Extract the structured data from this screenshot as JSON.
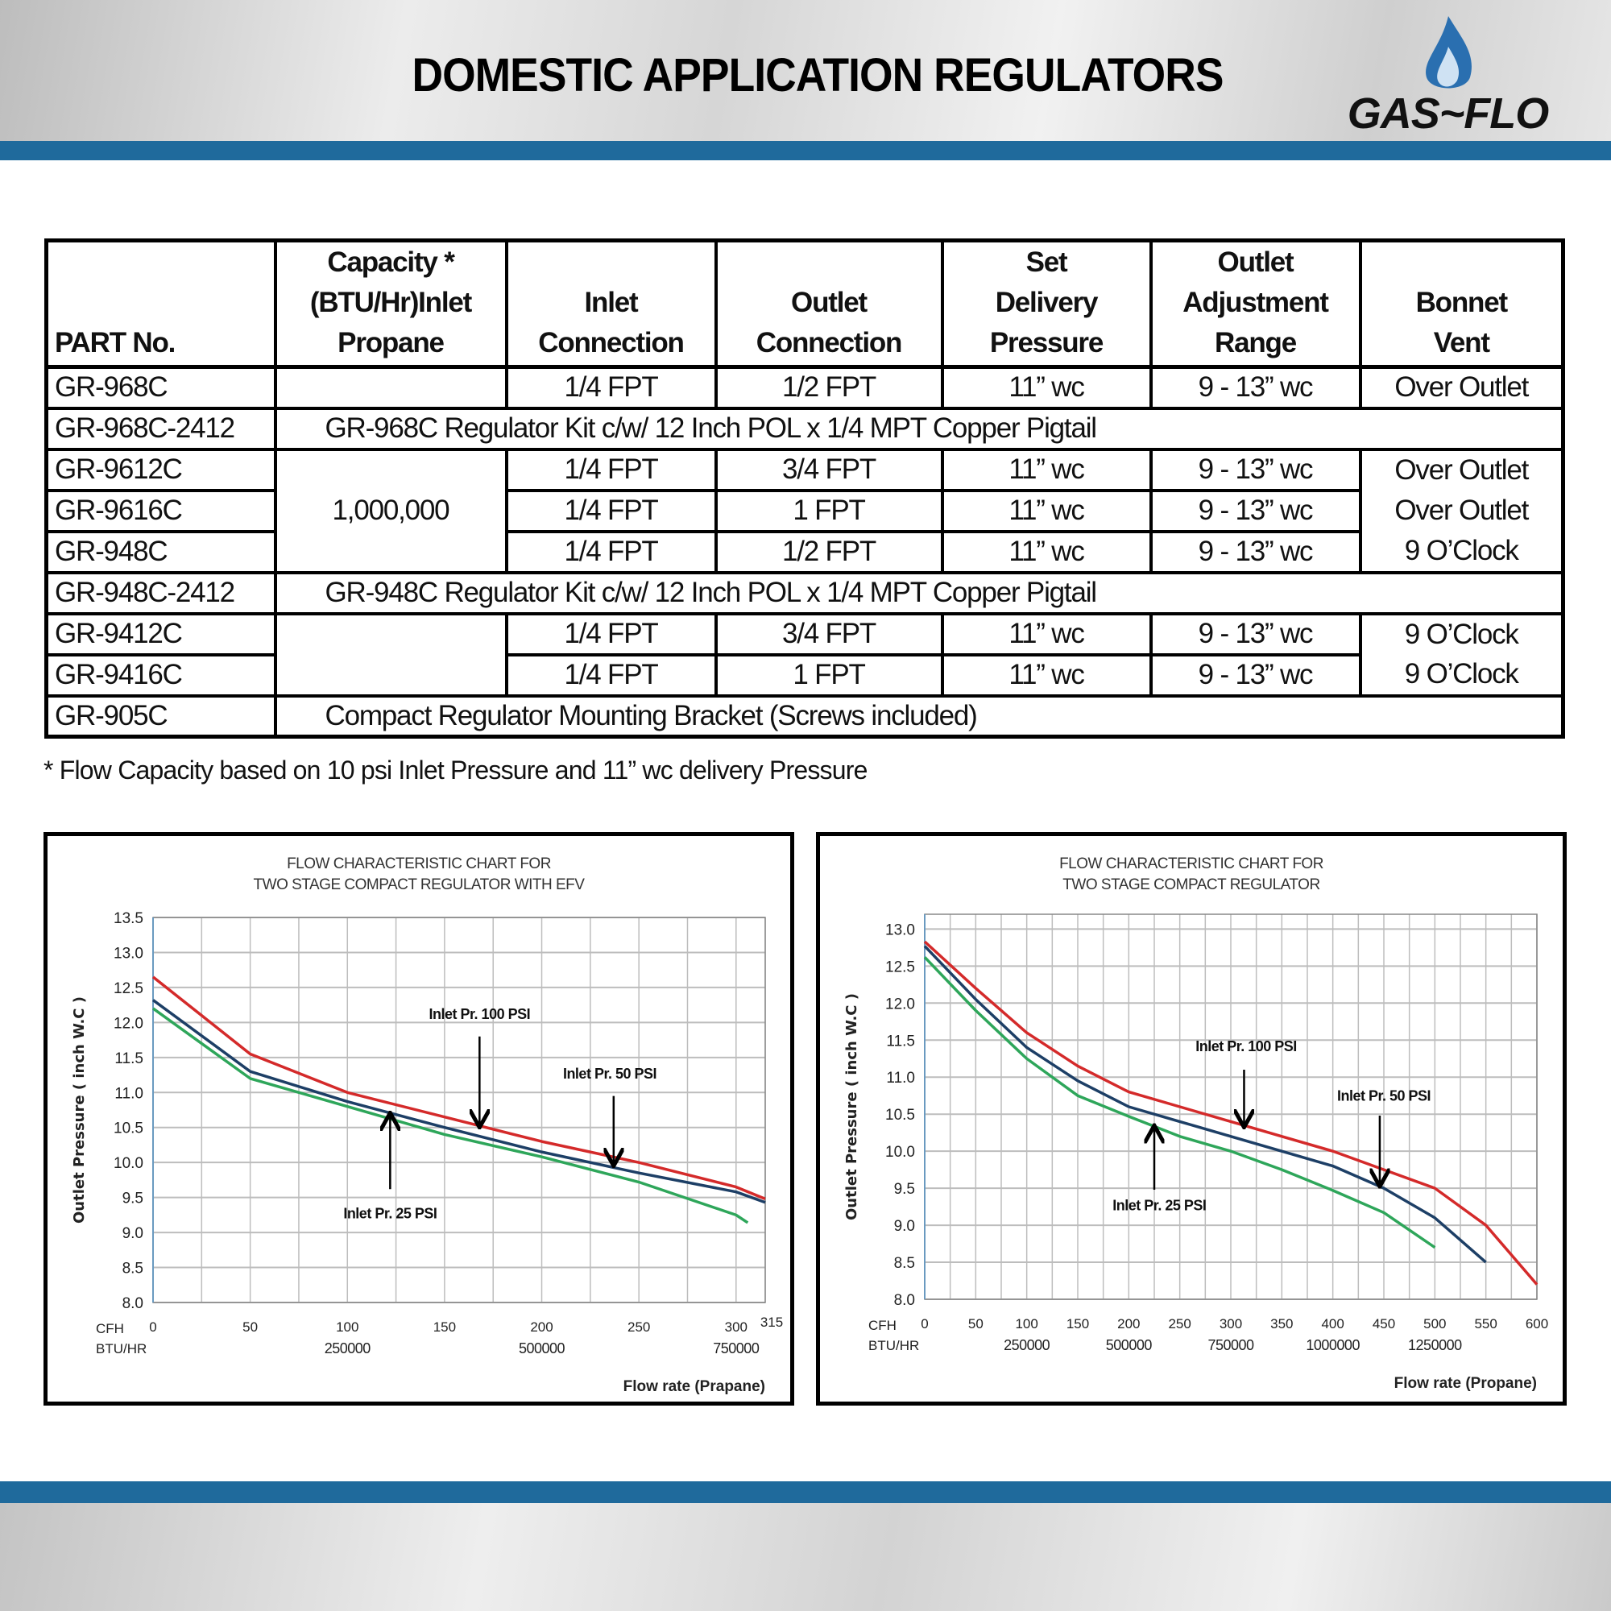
{
  "header": {
    "title": "DOMESTIC APPLICATION REGULATORS",
    "logo_text": "GAS~FLO"
  },
  "colors": {
    "band": "#1f6a9c",
    "red": "#d42a2a",
    "blue": "#1d3f66",
    "green": "#2ea65a",
    "grid": "#bdbdbd"
  },
  "table": {
    "headers": [
      "PART No.",
      "Capacity *\n(BTU/Hr)Inlet\nPropane",
      "Inlet\nConnection",
      "Outlet\nConnection",
      "Set\nDelivery\nPressure",
      "Outlet\nAdjustment\nRange",
      "Bonnet\nVent"
    ],
    "rows": [
      {
        "part": "GR-968C",
        "capacity": "",
        "inlet": "1/4 FPT",
        "outlet": "1/2 FPT",
        "pressure": "11” wc",
        "range": "9 - 13” wc",
        "vent": "Over Outlet"
      },
      {
        "part": "GR-968C-2412",
        "desc": "GR-968C Regulator Kit c/w/ 12 Inch POL x 1/4 MPT Copper Pigtail"
      },
      {
        "part": "GR-9612C",
        "capacity": "1,000,000",
        "inlet": "1/4 FPT",
        "outlet": "3/4 FPT",
        "pressure": "11” wc",
        "range": "9 - 13” wc",
        "vent": "Over Outlet"
      },
      {
        "part": "GR-9616C",
        "inlet": "1/4 FPT",
        "outlet": "1 FPT",
        "pressure": "11” wc",
        "range": "9 - 13” wc",
        "vent": "Over Outlet"
      },
      {
        "part": "GR-948C",
        "inlet": "1/4 FPT",
        "outlet": "1/2 FPT",
        "pressure": "11” wc",
        "range": "9 - 13” wc",
        "vent": "9 O’Clock"
      },
      {
        "part": "GR-948C-2412",
        "desc": "GR-948C Regulator Kit c/w/ 12 Inch POL x 1/4 MPT Copper Pigtail"
      },
      {
        "part": "GR-9412C",
        "capacity": "",
        "inlet": "1/4 FPT",
        "outlet": "3/4 FPT",
        "pressure": "11” wc",
        "range": "9 - 13” wc",
        "vent": "9 O’Clock"
      },
      {
        "part": "GR-9416C",
        "inlet": "1/4 FPT",
        "outlet": "1 FPT",
        "pressure": "11” wc",
        "range": "9 - 13” wc",
        "vent": "9 O’Clock"
      },
      {
        "part": "GR-905C",
        "desc": "Compact Regulator Mounting Bracket (Screws included)"
      }
    ]
  },
  "footnote": "* Flow Capacity based on 10 psi Inlet Pressure and  11” wc delivery Pressure",
  "chart_data": [
    {
      "type": "line",
      "title": [
        "FLOW CHARACTERISTIC CHART FOR",
        "TWO STAGE COMPACT REGULATOR WITH EFV"
      ],
      "ylabel": "Outlet Pressure  ( inch W.C )",
      "xlabel": "Flow rate (Prapane)",
      "xlim": [
        0,
        315
      ],
      "ylim": [
        8.0,
        13.5
      ],
      "yticks": [
        "8.0",
        "8.5",
        "9.0",
        "9.5",
        "10.0",
        "10.5",
        "11.0",
        "11.5",
        "12.0",
        "12.5",
        "13.0",
        "13.5"
      ],
      "xgrid_step": 25,
      "xticks": [
        "0",
        "50",
        "100",
        "150",
        "200",
        "250",
        "300",
        "315"
      ],
      "row_labels": [
        "CFH",
        "BTU/HR"
      ],
      "btu_ticks": [
        {
          "x": 100,
          "label": "250000"
        },
        {
          "x": 200,
          "label": "500000"
        },
        {
          "x": 300,
          "label": "750000"
        }
      ],
      "series": [
        {
          "name": "Inlet Pr. 100 PSI",
          "color": "red",
          "points": [
            [
              0,
              12.65
            ],
            [
              50,
              11.55
            ],
            [
              100,
              11.0
            ],
            [
              150,
              10.65
            ],
            [
              200,
              10.3
            ],
            [
              250,
              10.0
            ],
            [
              300,
              9.65
            ],
            [
              315,
              9.48
            ]
          ]
        },
        {
          "name": "Inlet Pr. 50 PSI",
          "color": "blue",
          "points": [
            [
              0,
              12.32
            ],
            [
              50,
              11.3
            ],
            [
              100,
              10.87
            ],
            [
              150,
              10.5
            ],
            [
              200,
              10.15
            ],
            [
              250,
              9.85
            ],
            [
              300,
              9.58
            ],
            [
              315,
              9.43
            ]
          ]
        },
        {
          "name": "Inlet Pr. 25 PSI",
          "color": "green",
          "points": [
            [
              0,
              12.2
            ],
            [
              50,
              11.2
            ],
            [
              100,
              10.8
            ],
            [
              150,
              10.4
            ],
            [
              200,
              10.08
            ],
            [
              250,
              9.72
            ],
            [
              300,
              9.25
            ],
            [
              306,
              9.14
            ]
          ]
        }
      ],
      "annotations": [
        {
          "text": "Inlet Pr. 100 PSI",
          "label_at": [
            168,
            12.05
          ],
          "arrow_from": [
            168,
            11.8
          ],
          "arrow_to": [
            168,
            10.53
          ]
        },
        {
          "text": "Inlet Pr. 50 PSI",
          "label_at": [
            235,
            11.2
          ],
          "arrow_from": [
            237,
            10.95
          ],
          "arrow_to": [
            237,
            9.98
          ]
        },
        {
          "text": "Inlet Pr. 25 PSI",
          "label_at": [
            122,
            9.2
          ],
          "arrow_from": [
            122,
            9.62
          ],
          "arrow_to": [
            122,
            10.68
          ]
        }
      ]
    },
    {
      "type": "line",
      "title": [
        "FLOW CHARACTERISTIC CHART FOR",
        "TWO STAGE COMPACT REGULATOR"
      ],
      "ylabel": "Outlet Pressure  ( inch W.C )",
      "xlabel": "Flow rate (Propane)",
      "xlim": [
        0,
        600
      ],
      "ylim": [
        8.0,
        13.2
      ],
      "yticks": [
        "8.0",
        "8.5",
        "9.0",
        "9.5",
        "10.0",
        "10.5",
        "11.0",
        "11.5",
        "12.0",
        "12.5",
        "13.0"
      ],
      "xgrid_step": 25,
      "xticks": [
        "0",
        "50",
        "100",
        "150",
        "200",
        "250",
        "300",
        "350",
        "400",
        "450",
        "500",
        "550",
        "600"
      ],
      "row_labels": [
        "CFH",
        "BTU/HR"
      ],
      "btu_ticks": [
        {
          "x": 100,
          "label": "250000"
        },
        {
          "x": 200,
          "label": "500000"
        },
        {
          "x": 300,
          "label": "750000"
        },
        {
          "x": 400,
          "label": "1000000"
        },
        {
          "x": 500,
          "label": "1250000"
        }
      ],
      "series": [
        {
          "name": "Inlet Pr. 100 PSI",
          "color": "red",
          "points": [
            [
              0,
              12.83
            ],
            [
              50,
              12.2
            ],
            [
              100,
              11.6
            ],
            [
              150,
              11.15
            ],
            [
              200,
              10.8
            ],
            [
              250,
              10.6
            ],
            [
              300,
              10.4
            ],
            [
              350,
              10.2
            ],
            [
              400,
              10.0
            ],
            [
              450,
              9.75
            ],
            [
              500,
              9.5
            ],
            [
              550,
              9.0
            ],
            [
              600,
              8.2
            ]
          ]
        },
        {
          "name": "Inlet Pr. 50 PSI",
          "color": "blue",
          "points": [
            [
              0,
              12.77
            ],
            [
              50,
              12.05
            ],
            [
              100,
              11.4
            ],
            [
              150,
              10.95
            ],
            [
              200,
              10.6
            ],
            [
              250,
              10.4
            ],
            [
              300,
              10.2
            ],
            [
              350,
              10.0
            ],
            [
              400,
              9.8
            ],
            [
              450,
              9.5
            ],
            [
              500,
              9.1
            ],
            [
              550,
              8.5
            ]
          ]
        },
        {
          "name": "Inlet Pr. 25 PSI",
          "color": "green",
          "points": [
            [
              0,
              12.62
            ],
            [
              50,
              11.9
            ],
            [
              100,
              11.25
            ],
            [
              150,
              10.75
            ],
            [
              200,
              10.47
            ],
            [
              250,
              10.2
            ],
            [
              300,
              10.0
            ],
            [
              350,
              9.75
            ],
            [
              400,
              9.47
            ],
            [
              450,
              9.17
            ],
            [
              500,
              8.7
            ]
          ]
        }
      ],
      "annotations": [
        {
          "text": "Inlet Pr. 100 PSI",
          "label_at": [
            315,
            11.35
          ],
          "arrow_from": [
            313,
            11.1
          ],
          "arrow_to": [
            313,
            10.35
          ]
        },
        {
          "text": "Inlet Pr.  50 PSI",
          "label_at": [
            450,
            10.68
          ],
          "arrow_from": [
            446,
            10.48
          ],
          "arrow_to": [
            446,
            9.55
          ]
        },
        {
          "text": "Inlet Pr. 25 PSI",
          "label_at": [
            230,
            9.2
          ],
          "arrow_from": [
            225,
            9.48
          ],
          "arrow_to": [
            225,
            10.32
          ]
        }
      ]
    }
  ]
}
